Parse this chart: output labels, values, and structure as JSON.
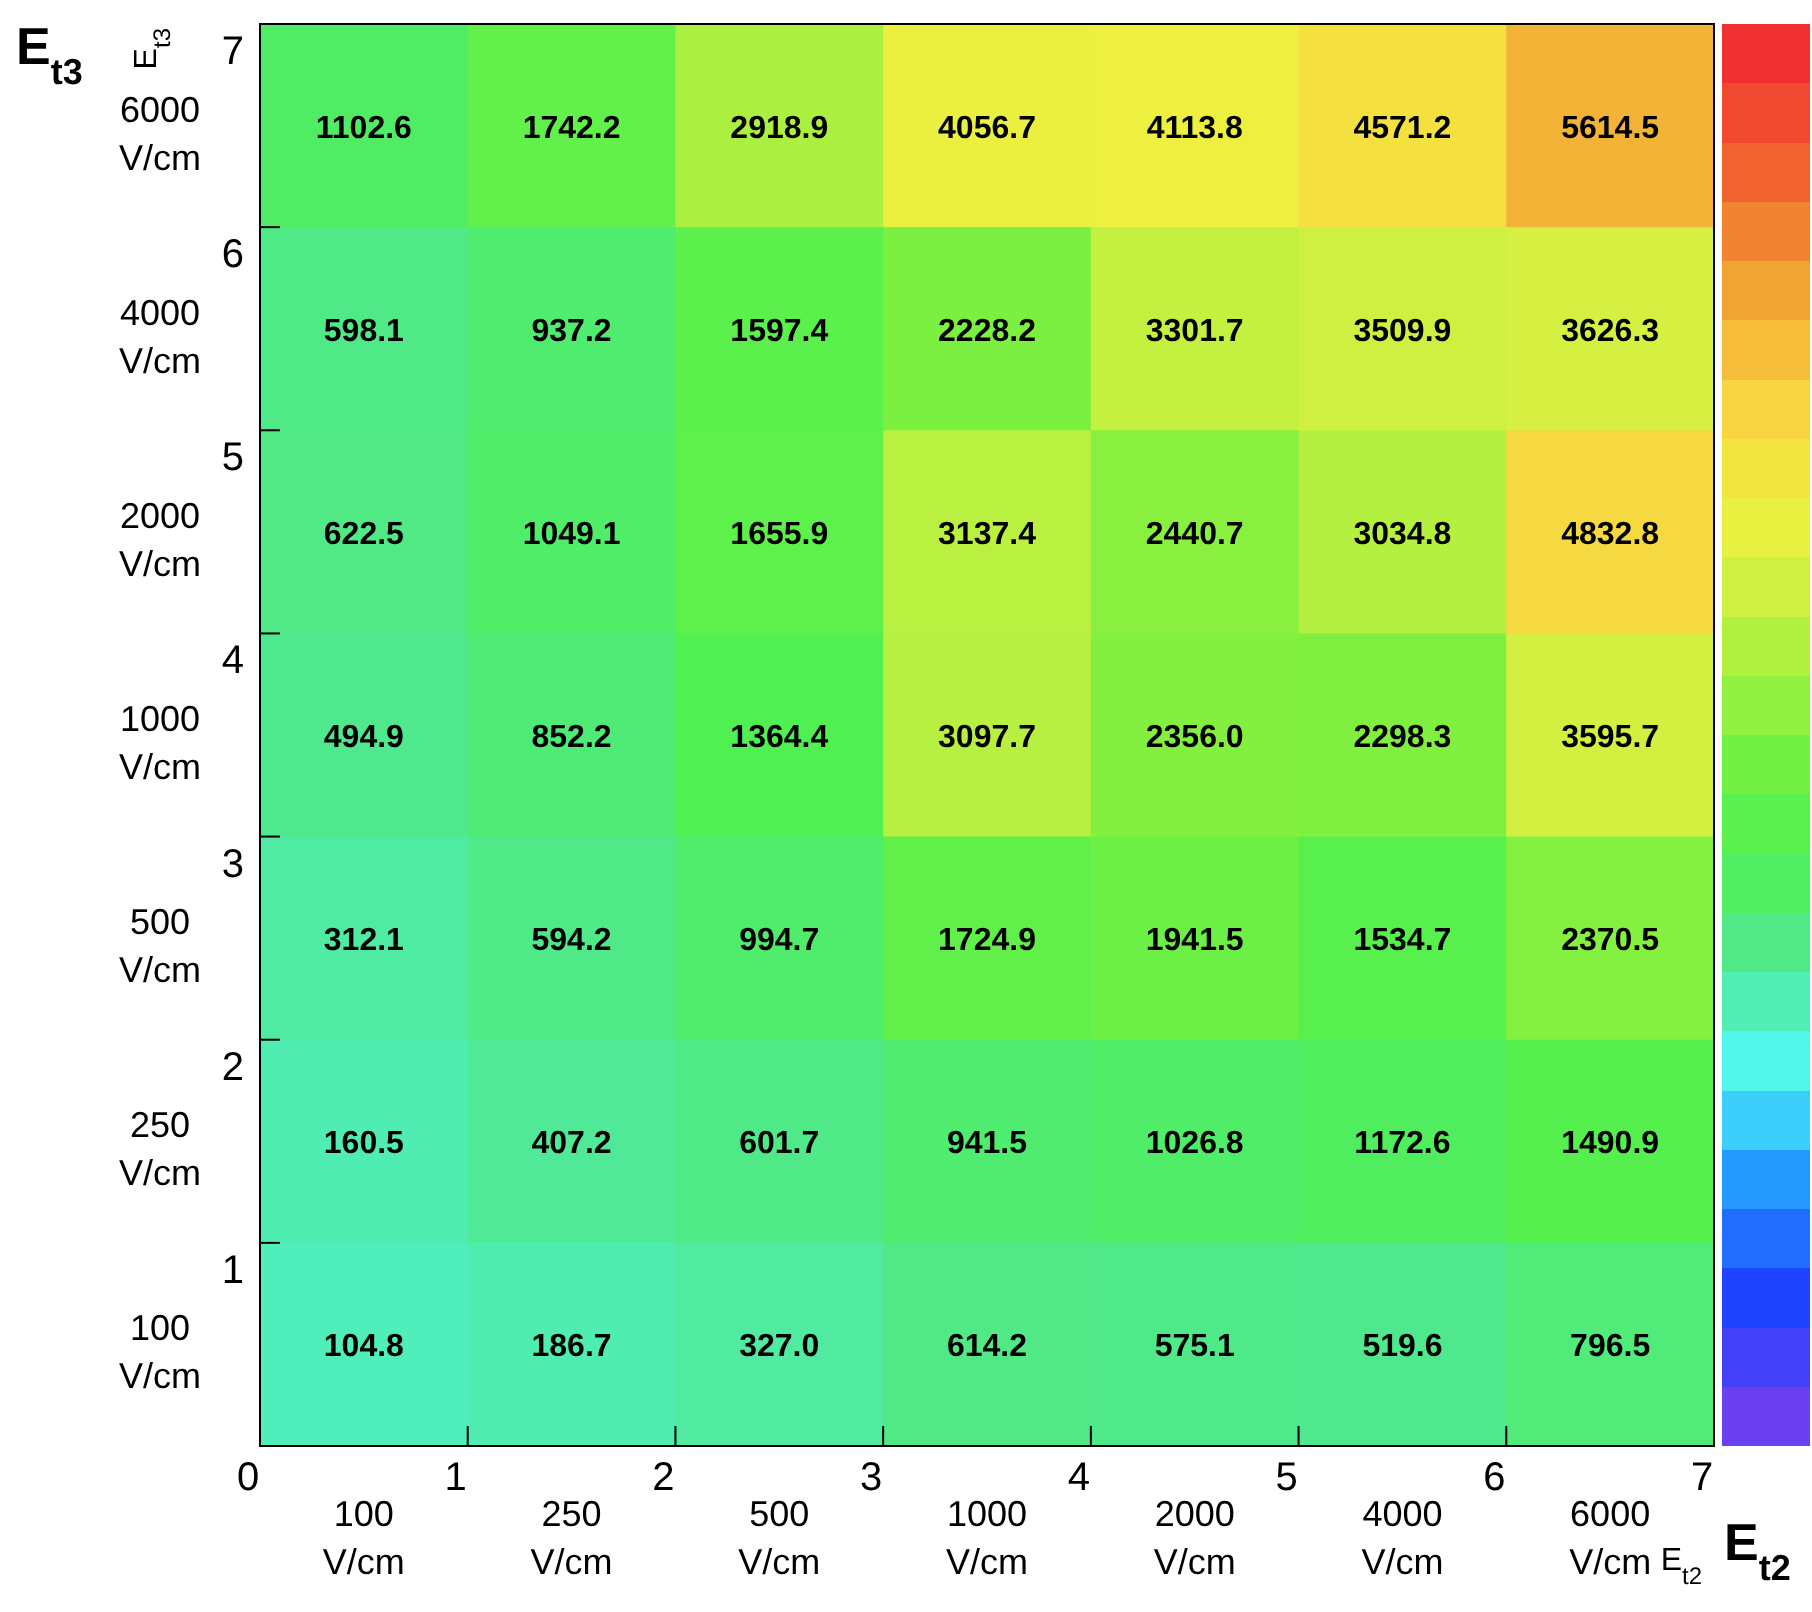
{
  "chart_data": {
    "type": "heatmap",
    "categories": [
      "100 V/cm",
      "250 V/cm",
      "500 V/cm",
      "1000 V/cm",
      "2000 V/cm",
      "4000 V/cm",
      "6000 V/cm"
    ],
    "y_categories": [
      "6000 V/cm",
      "4000 V/cm",
      "2000 V/cm",
      "1000 V/cm",
      "500 V/cm",
      "250 V/cm",
      "100 V/cm"
    ],
    "cells": [
      [
        1102.6,
        1742.2,
        2918.9,
        4056.7,
        4113.8,
        4571.2,
        5614.5
      ],
      [
        598.1,
        937.2,
        1597.4,
        2228.2,
        3301.7,
        3509.9,
        3626.3
      ],
      [
        622.5,
        1049.1,
        1655.9,
        3137.4,
        2440.7,
        3034.8,
        4832.8
      ],
      [
        494.9,
        852.2,
        1364.4,
        3097.7,
        2356.0,
        2298.3,
        3595.7
      ],
      [
        312.1,
        594.2,
        994.7,
        1724.9,
        1941.5,
        1534.7,
        2370.5
      ],
      [
        160.5,
        407.2,
        601.7,
        941.5,
        1026.8,
        1172.6,
        1490.9
      ],
      [
        104.8,
        186.7,
        327.0,
        614.2,
        575.1,
        519.6,
        796.5
      ]
    ],
    "cell_labels": [
      [
        "1102.6",
        "1742.2",
        "2918.9",
        "4056.7",
        "4113.8",
        "4571.2",
        "5614.5"
      ],
      [
        "598.1",
        "937.2",
        "1597.4",
        "2228.2",
        "3301.7",
        "3509.9",
        "3626.3"
      ],
      [
        "622.5",
        "1049.1",
        "1655.9",
        "3137.4",
        "2440.7",
        "3034.8",
        "4832.8"
      ],
      [
        "494.9",
        "852.2",
        "1364.4",
        "3097.7",
        "2356.0",
        "2298.3",
        "3595.7"
      ],
      [
        "312.1",
        "594.2",
        "994.7",
        "1724.9",
        "1941.5",
        "1534.7",
        "2370.5"
      ],
      [
        "160.5",
        "407.2",
        "601.7",
        "941.5",
        "1026.8",
        "1172.6",
        "1490.9"
      ],
      [
        "104.8",
        "186.7",
        "327.0",
        "614.2",
        "575.1",
        "519.6",
        "796.5"
      ]
    ],
    "xlabel": "E$_{t2}$",
    "ylabel": "E$_{t3}$",
    "annotations": [
      "E$_{t3}$",
      "E$_{t2}$",
      "0",
      "1",
      "2",
      "3",
      "4",
      "5",
      "6",
      "7",
      "1",
      "2",
      "3",
      "4",
      "5",
      "6",
      "7"
    ]
  }
}
